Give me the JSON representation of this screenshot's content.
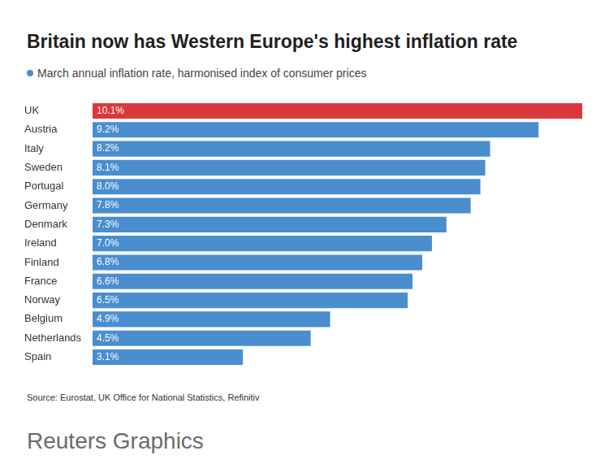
{
  "chart_data": {
    "type": "bar",
    "title": "Britain now has Western Europe's highest inflation rate",
    "subtitle": "March annual inflation rate, harmonised index of consumer prices",
    "annotations": [
      "Source: Eurostat, UK Office for National Statistics, Refinitiv",
      "Reuters Graphics"
    ],
    "categories": [
      "UK",
      "Austria",
      "Italy",
      "Sweden",
      "Portugal",
      "Germany",
      "Denmark",
      "Ireland",
      "Finland",
      "France",
      "Norway",
      "Belgium",
      "Netherlands",
      "Spain"
    ],
    "values": [
      10.1,
      9.2,
      8.2,
      8.1,
      8.0,
      7.8,
      7.3,
      7.0,
      6.8,
      6.6,
      6.5,
      4.9,
      4.5,
      3.1
    ],
    "value_labels": [
      "10.1%",
      "9.2%",
      "8.2%",
      "8.1%",
      "8.0%",
      "7.8%",
      "7.3%",
      "7.0%",
      "6.8%",
      "6.6%",
      "6.5%",
      "4.9%",
      "4.5%",
      "3.1%"
    ],
    "color": "#4a8ecf",
    "colors": [
      "#d9393c",
      "#4a8ecf",
      "#4a8ecf",
      "#4a8ecf",
      "#4a8ecf",
      "#4a8ecf",
      "#4a8ecf",
      "#4a8ecf",
      "#4a8ecf",
      "#4a8ecf",
      "#4a8ecf",
      "#4a8ecf",
      "#4a8ecf",
      "#4a8ecf"
    ],
    "xlim": [
      0,
      10.1
    ],
    "orientation": "horizontal",
    "data_labels": true,
    "tick_labels": "y",
    "grid": false
  }
}
